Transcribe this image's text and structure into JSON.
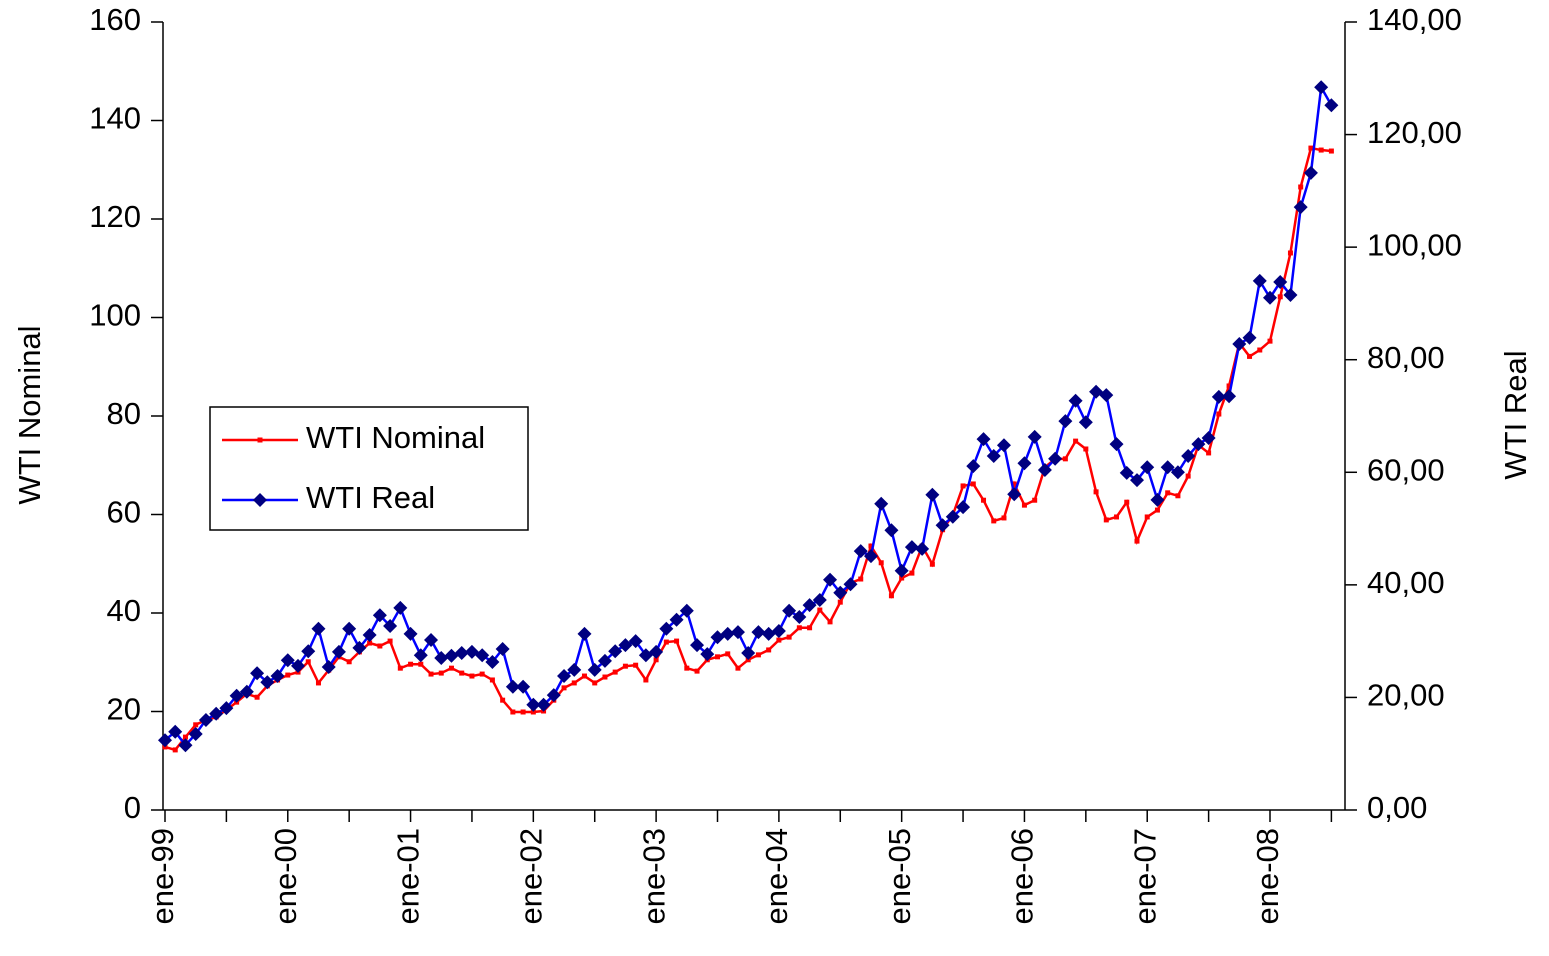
{
  "chart_data": {
    "type": "line",
    "y_label": "WTI Nominal",
    "y2_label": "WTI Real",
    "categories": [
      "ene-99",
      null,
      null,
      null,
      null,
      null,
      null,
      null,
      null,
      null,
      null,
      null,
      "ene-00",
      null,
      null,
      null,
      null,
      null,
      null,
      null,
      null,
      null,
      null,
      null,
      "ene-01",
      null,
      null,
      null,
      null,
      null,
      null,
      null,
      null,
      null,
      null,
      null,
      "ene-02",
      null,
      null,
      null,
      null,
      null,
      null,
      null,
      null,
      null,
      null,
      null,
      "ene-03",
      null,
      null,
      null,
      null,
      null,
      null,
      null,
      null,
      null,
      null,
      null,
      "ene-04",
      null,
      null,
      null,
      null,
      null,
      null,
      null,
      null,
      null,
      null,
      null,
      "ene-05",
      null,
      null,
      null,
      null,
      null,
      null,
      null,
      null,
      null,
      null,
      null,
      "ene-06",
      null,
      null,
      null,
      null,
      null,
      null,
      null,
      null,
      null,
      null,
      null,
      "ene-07",
      null,
      null,
      null,
      null,
      null,
      null,
      null,
      null,
      null,
      null,
      null,
      "ene-08",
      null,
      null,
      null,
      null,
      null,
      null
    ],
    "series": [
      {
        "name": "WTI Nominal",
        "color": "#ff0000",
        "marker": "square",
        "axis": "y",
        "values": [
          12.8,
          12.2,
          14.8,
          17.3,
          18.3,
          18.9,
          20.3,
          21.9,
          23.6,
          22.9,
          25.2,
          26.4,
          27.4,
          28.0,
          30.1,
          25.8,
          28.4,
          31.1,
          30.1,
          32.1,
          33.9,
          33.3,
          34.3,
          28.8,
          29.6,
          29.6,
          27.6,
          27.8,
          28.8,
          27.8,
          27.2,
          27.6,
          26.4,
          22.3,
          19.9,
          19.9,
          19.9,
          20.1,
          22.3,
          24.8,
          25.8,
          27.2,
          25.8,
          27.0,
          28.0,
          29.2,
          29.4,
          26.4,
          30.5,
          34.1,
          34.3,
          28.8,
          28.2,
          30.5,
          31.1,
          31.7,
          28.8,
          30.5,
          31.5,
          32.5,
          34.5,
          35.1,
          37.0,
          37.0,
          40.6,
          38.2,
          42.2,
          46.1,
          46.9,
          53.6,
          50.2,
          43.5,
          47.1,
          48.1,
          53.6,
          49.9,
          56.9,
          59.9,
          65.8,
          66.2,
          62.9,
          58.7,
          59.3,
          66.2,
          61.9,
          62.9,
          69.6,
          71.3,
          71.3,
          74.9,
          73.3,
          64.6,
          58.9,
          59.5,
          62.5,
          54.6,
          59.5,
          60.9,
          64.4,
          63.8,
          67.8,
          74.1,
          72.5,
          80.4,
          86.1,
          94.8,
          92.1,
          93.4,
          95.2,
          104.2,
          113.1,
          126.5,
          134.4,
          134.0,
          133.8
        ]
      },
      {
        "name": "WTI Real",
        "color": "#0000ff",
        "marker_color": "#000080",
        "marker": "diamond",
        "axis": "y2",
        "values": [
          12.4,
          13.9,
          11.5,
          13.5,
          16.0,
          17.1,
          18.1,
          20.3,
          21.0,
          24.3,
          22.7,
          23.8,
          26.6,
          25.6,
          28.2,
          32.2,
          25.4,
          28.1,
          32.2,
          28.8,
          31.1,
          34.6,
          32.7,
          35.9,
          31.3,
          27.5,
          30.2,
          27.0,
          27.4,
          27.9,
          28.1,
          27.5,
          26.3,
          28.6,
          21.9,
          21.9,
          18.7,
          18.7,
          20.4,
          23.8,
          24.9,
          31.3,
          24.9,
          26.5,
          28.2,
          29.3,
          30.0,
          27.5,
          28.1,
          32.2,
          33.8,
          35.4,
          29.3,
          27.7,
          30.7,
          31.3,
          31.6,
          27.9,
          31.6,
          31.3,
          31.8,
          35.4,
          34.3,
          36.4,
          37.3,
          40.9,
          38.6,
          40.1,
          46.0,
          45.1,
          54.4,
          49.7,
          42.5,
          46.7,
          46.4,
          56.0,
          50.6,
          52.1,
          53.8,
          61.1,
          65.9,
          62.9,
          64.8,
          56.1,
          61.6,
          66.3,
          60.4,
          62.4,
          69.1,
          72.7,
          68.9,
          74.3,
          73.7,
          65.0,
          59.9,
          58.6,
          60.9,
          55.1,
          60.9,
          60.0,
          62.9,
          65.0,
          66.1,
          73.4,
          73.5,
          82.8,
          83.9,
          94.0,
          91.0,
          93.8,
          91.5,
          107.1,
          113.2,
          128.4,
          125.2
        ]
      }
    ],
    "ylim": [
      0,
      160
    ],
    "yticks": [
      0,
      20,
      40,
      60,
      80,
      100,
      120,
      140,
      160
    ],
    "y2lim": [
      0,
      140
    ],
    "y2ticks": [
      {
        "value": 0,
        "label": "0,00"
      },
      {
        "value": 20,
        "label": "20,00"
      },
      {
        "value": 40,
        "label": "40,00"
      },
      {
        "value": 60,
        "label": "60,00"
      },
      {
        "value": 80,
        "label": "80,00"
      },
      {
        "value": 100,
        "label": "100,00"
      },
      {
        "value": 120,
        "label": "120,00"
      },
      {
        "value": 140,
        "label": "140,00"
      }
    ],
    "grid": false,
    "legend": "left"
  }
}
